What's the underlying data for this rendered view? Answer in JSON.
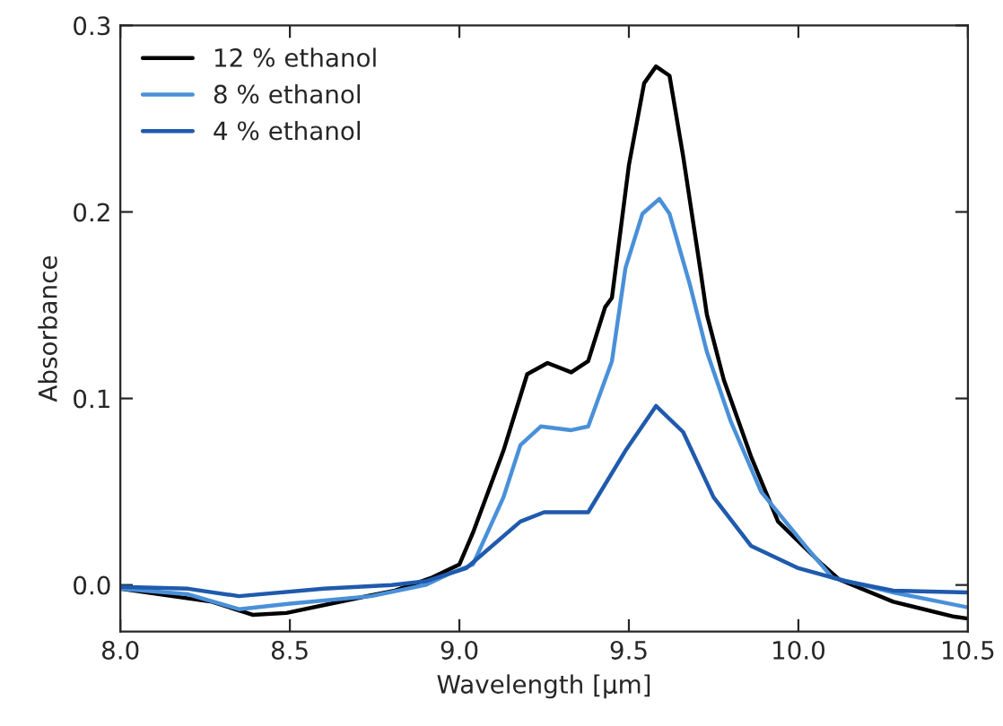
{
  "chart_data": {
    "type": "line",
    "xlabel": "Wavelength [µm]",
    "ylabel": "Absorbance",
    "xlim": [
      8.0,
      10.5
    ],
    "ylim": [
      -0.025,
      0.3
    ],
    "xticks": [
      {
        "value": 8.0,
        "label": "8.0"
      },
      {
        "value": 8.5,
        "label": "8.5"
      },
      {
        "value": 9.0,
        "label": "9.0"
      },
      {
        "value": 9.5,
        "label": "9.5"
      },
      {
        "value": 10.0,
        "label": "10.0"
      },
      {
        "value": 10.5,
        "label": "10.5"
      }
    ],
    "yticks": [
      {
        "value": 0.0,
        "label": "0.0"
      },
      {
        "value": 0.1,
        "label": "0.1"
      },
      {
        "value": 0.2,
        "label": "0.2"
      },
      {
        "value": 0.3,
        "label": "0.3"
      }
    ],
    "legend": "top left",
    "grid": false,
    "line_style": "solid",
    "marker": "none",
    "series": [
      {
        "name": "12 % ethanol",
        "color": "#000000",
        "x": [
          8.0,
          8.27,
          8.39,
          8.49,
          8.7,
          8.81,
          8.92,
          9.0,
          9.04,
          9.13,
          9.2,
          9.26,
          9.33,
          9.38,
          9.43,
          9.45,
          9.5,
          9.545,
          9.58,
          9.62,
          9.66,
          9.71,
          9.73,
          9.78,
          9.86,
          9.94,
          10.07,
          10.12,
          10.28,
          10.46,
          10.5
        ],
        "values": [
          -0.002,
          -0.009,
          -0.016,
          -0.015,
          -0.007,
          -0.003,
          0.004,
          0.011,
          0.028,
          0.072,
          0.113,
          0.119,
          0.114,
          0.12,
          0.149,
          0.154,
          0.225,
          0.269,
          0.278,
          0.273,
          0.23,
          0.17,
          0.145,
          0.11,
          0.069,
          0.034,
          0.011,
          0.003,
          -0.009,
          -0.017,
          -0.018
        ]
      },
      {
        "name": "8 % ethanol",
        "color": "#4a90d9",
        "x": [
          8.0,
          8.2,
          8.35,
          8.5,
          8.74,
          8.9,
          8.97,
          9.04,
          9.13,
          9.18,
          9.24,
          9.33,
          9.38,
          9.45,
          9.49,
          9.54,
          9.59,
          9.62,
          9.68,
          9.73,
          9.8,
          9.89,
          10.02,
          10.1,
          10.28,
          10.5
        ],
        "values": [
          -0.002,
          -0.005,
          -0.013,
          -0.01,
          -0.006,
          0.0,
          0.006,
          0.011,
          0.047,
          0.075,
          0.085,
          0.083,
          0.085,
          0.12,
          0.17,
          0.199,
          0.207,
          0.199,
          0.161,
          0.125,
          0.088,
          0.05,
          0.021,
          0.004,
          -0.004,
          -0.012
        ]
      },
      {
        "name": "4 % ethanol",
        "color": "#1f5aad",
        "x": [
          8.0,
          8.2,
          8.35,
          8.6,
          8.8,
          8.9,
          9.02,
          9.18,
          9.25,
          9.38,
          9.49,
          9.58,
          9.66,
          9.75,
          9.86,
          10.0,
          10.14,
          10.28,
          10.5
        ],
        "values": [
          -0.001,
          -0.002,
          -0.006,
          -0.002,
          0.0,
          0.002,
          0.009,
          0.034,
          0.039,
          0.039,
          0.072,
          0.096,
          0.082,
          0.047,
          0.021,
          0.009,
          0.002,
          -0.003,
          -0.004
        ]
      }
    ]
  }
}
